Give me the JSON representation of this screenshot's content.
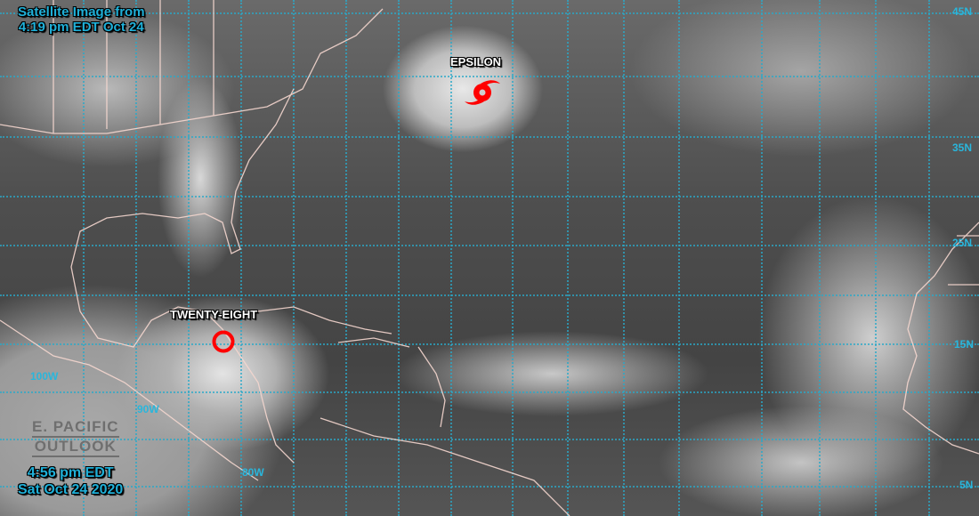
{
  "header": {
    "line1": "Satellite Image from",
    "line2": "4:19 pm EDT Oct 24"
  },
  "footer": {
    "line1": "4:56 pm EDT",
    "line2": "Sat Oct 24 2020"
  },
  "outlook": {
    "line1": "E. PACIFIC",
    "line2": "OUTLOOK"
  },
  "storms": [
    {
      "name": "EPSILON",
      "icon": "hurricane-icon",
      "color": "#ff0000"
    },
    {
      "name": "TWENTY-EIGHT",
      "icon": "depression-circle-icon",
      "color": "#ff0000"
    }
  ],
  "latitude_labels": [
    "45N",
    "35N",
    "25N",
    "15N",
    "5N"
  ],
  "longitude_labels": [
    "100W",
    "90W",
    "80W"
  ],
  "colors": {
    "grid": "#2aa9c9",
    "labels": "#1fb0d8",
    "coastline": "#f5d7cf"
  }
}
